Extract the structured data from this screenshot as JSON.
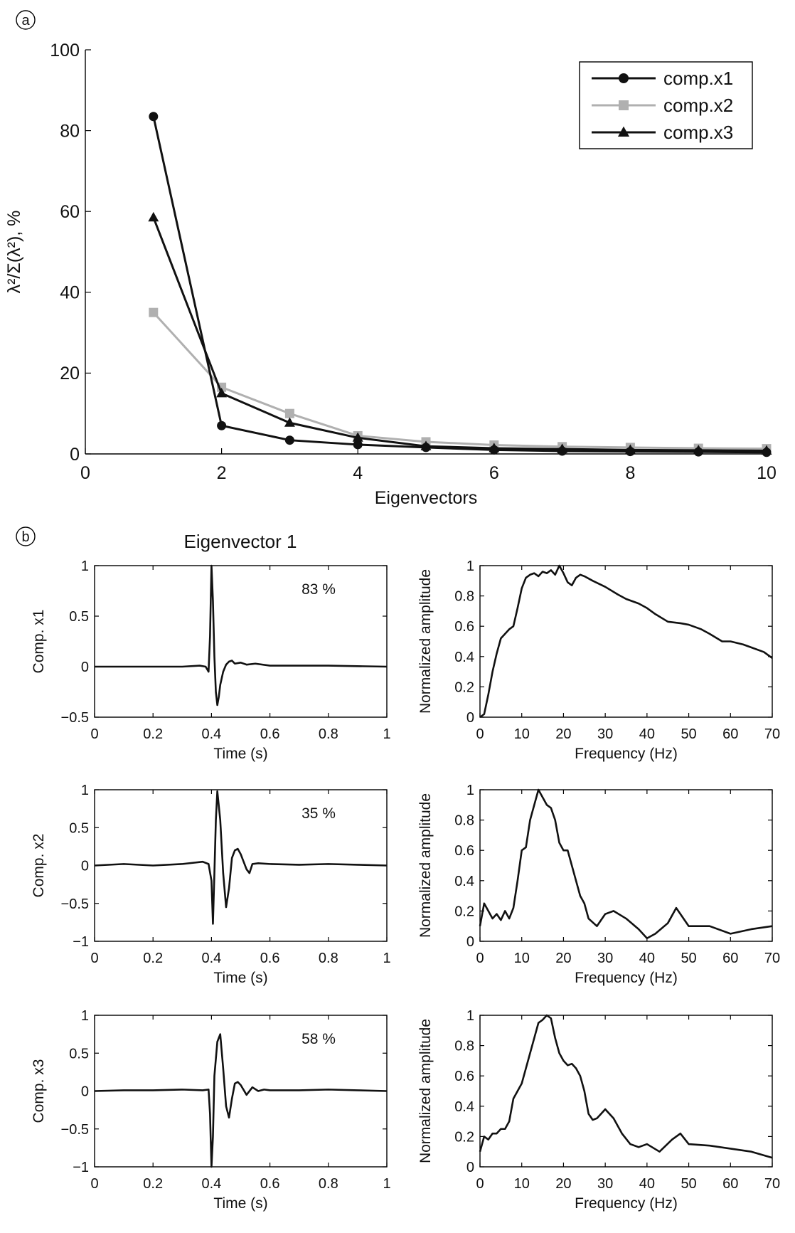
{
  "panel_labels": {
    "a": "a",
    "b": "b"
  },
  "chart_data": [
    {
      "type": "line",
      "panel": "a",
      "xlabel": "Eigenvectors",
      "ylabel": "λ²/Σ(λ²), %",
      "xlim": [
        0,
        10
      ],
      "ylim": [
        0,
        100
      ],
      "xticks": [
        0,
        2,
        4,
        6,
        8,
        10
      ],
      "yticks": [
        0,
        20,
        40,
        60,
        80,
        100
      ],
      "legend_position": "top-right",
      "x": [
        1,
        2,
        3,
        4,
        5,
        6,
        7,
        8,
        9,
        10
      ],
      "series": [
        {
          "name": "comp.x1",
          "color": "#111111",
          "marker": "circle",
          "values": [
            83.5,
            7,
            3.4,
            2.3,
            1.6,
            1.0,
            0.7,
            0.6,
            0.5,
            0.4
          ]
        },
        {
          "name": "comp.x2",
          "color": "#b0b0b0",
          "marker": "square",
          "values": [
            35,
            16.5,
            10,
            4.5,
            3,
            2.2,
            1.8,
            1.6,
            1.4,
            1.3
          ]
        },
        {
          "name": "comp.x3",
          "color": "#111111",
          "marker": "triangle",
          "values": [
            58.5,
            15,
            7.7,
            4.0,
            1.9,
            1.4,
            1.2,
            1.0,
            0.9,
            0.8
          ]
        }
      ]
    },
    {
      "type": "line",
      "panel": "b",
      "title": "Eigenvector 1",
      "ylabel": "Comp. x1",
      "xlabel": "Time (s)",
      "xlim": [
        0,
        1
      ],
      "ylim": [
        -0.5,
        1
      ],
      "xticks": [
        "0",
        "0.2",
        "0.4",
        "0.6",
        "0.8",
        "1"
      ],
      "yticks": [
        "1",
        "0.5",
        "0",
        "−0.5"
      ],
      "annotation": "83 %",
      "x": [
        0,
        0.1,
        0.2,
        0.3,
        0.36,
        0.38,
        0.39,
        0.395,
        0.4,
        0.405,
        0.41,
        0.415,
        0.42,
        0.425,
        0.43,
        0.44,
        0.45,
        0.46,
        0.47,
        0.48,
        0.5,
        0.52,
        0.55,
        0.6,
        0.7,
        0.8,
        1.0
      ],
      "values": [
        0,
        0,
        0,
        0,
        0.01,
        0,
        -0.05,
        0.3,
        1.0,
        0.65,
        0.1,
        -0.25,
        -0.38,
        -0.3,
        -0.18,
        -0.05,
        0.02,
        0.05,
        0.06,
        0.03,
        0.04,
        0.02,
        0.03,
        0.01,
        0.01,
        0.01,
        0
      ]
    },
    {
      "type": "line",
      "panel": "b",
      "xlabel": "Frequency (Hz)",
      "ylabel": "Normalized amplitude",
      "xlim": [
        0,
        70
      ],
      "ylim": [
        0,
        1
      ],
      "xticks": [
        "0",
        "10",
        "20",
        "30",
        "40",
        "50",
        "60",
        "70"
      ],
      "yticks": [
        "1",
        "0.8",
        "0.6",
        "0.4",
        "0.2",
        "0"
      ],
      "x": [
        0,
        1,
        2,
        3,
        4,
        5,
        6,
        7,
        8,
        9,
        10,
        11,
        12,
        13,
        14,
        15,
        16,
        17,
        18,
        19,
        20,
        21,
        22,
        23,
        24,
        25,
        27,
        30,
        33,
        35,
        38,
        40,
        42,
        45,
        48,
        50,
        53,
        55,
        58,
        60,
        63,
        65,
        68,
        70
      ],
      "values": [
        0,
        0.02,
        0.15,
        0.3,
        0.42,
        0.52,
        0.55,
        0.58,
        0.6,
        0.72,
        0.85,
        0.92,
        0.94,
        0.95,
        0.93,
        0.96,
        0.95,
        0.97,
        0.94,
        1.0,
        0.95,
        0.89,
        0.87,
        0.92,
        0.94,
        0.93,
        0.9,
        0.86,
        0.81,
        0.78,
        0.75,
        0.72,
        0.68,
        0.63,
        0.62,
        0.61,
        0.58,
        0.55,
        0.5,
        0.5,
        0.48,
        0.46,
        0.43,
        0.39
      ]
    },
    {
      "type": "line",
      "panel": "b",
      "ylabel": "Comp. x2",
      "xlabel": "Time (s)",
      "xlim": [
        0,
        1
      ],
      "ylim": [
        -1,
        1
      ],
      "xticks": [
        "0",
        "0.2",
        "0.4",
        "0.6",
        "0.8",
        "1"
      ],
      "yticks": [
        "1",
        "0.5",
        "0",
        "−0.5",
        "−1"
      ],
      "annotation": "35 %",
      "x": [
        0,
        0.1,
        0.2,
        0.3,
        0.37,
        0.39,
        0.4,
        0.405,
        0.41,
        0.415,
        0.42,
        0.43,
        0.44,
        0.45,
        0.46,
        0.47,
        0.48,
        0.49,
        0.5,
        0.51,
        0.52,
        0.53,
        0.54,
        0.56,
        0.6,
        0.7,
        0.8,
        0.9,
        1.0
      ],
      "values": [
        0,
        0.02,
        0,
        0.02,
        0.05,
        0.02,
        -0.2,
        -0.77,
        -0.1,
        0.6,
        0.98,
        0.6,
        -0.1,
        -0.55,
        -0.3,
        0.1,
        0.2,
        0.22,
        0.15,
        0.05,
        -0.05,
        -0.1,
        0.02,
        0.03,
        0.02,
        0.01,
        0.02,
        0.01,
        0
      ]
    },
    {
      "type": "line",
      "panel": "b",
      "xlabel": "Frequency (Hz)",
      "ylabel": "Normalized amplitude",
      "xlim": [
        0,
        70
      ],
      "ylim": [
        0,
        1
      ],
      "xticks": [
        "0",
        "10",
        "20",
        "30",
        "40",
        "50",
        "60",
        "70"
      ],
      "yticks": [
        "1",
        "0.8",
        "0.6",
        "0.4",
        "0.2",
        "0"
      ],
      "x": [
        0,
        1,
        2,
        3,
        4,
        5,
        6,
        7,
        8,
        9,
        10,
        11,
        12,
        13,
        14,
        15,
        16,
        17,
        18,
        19,
        20,
        21,
        22,
        23,
        24,
        25,
        26,
        28,
        30,
        32,
        35,
        38,
        40,
        42,
        45,
        47,
        50,
        55,
        60,
        65,
        70
      ],
      "values": [
        0.1,
        0.25,
        0.2,
        0.15,
        0.18,
        0.14,
        0.2,
        0.15,
        0.22,
        0.4,
        0.6,
        0.62,
        0.8,
        0.9,
        1.0,
        0.95,
        0.9,
        0.88,
        0.8,
        0.65,
        0.6,
        0.6,
        0.5,
        0.4,
        0.3,
        0.25,
        0.15,
        0.1,
        0.18,
        0.2,
        0.15,
        0.08,
        0.02,
        0.05,
        0.12,
        0.22,
        0.1,
        0.1,
        0.05,
        0.08,
        0.1
      ]
    },
    {
      "type": "line",
      "panel": "b",
      "ylabel": "Comp. x3",
      "xlabel": "Time (s)",
      "xlim": [
        0,
        1
      ],
      "ylim": [
        -1,
        1
      ],
      "xticks": [
        "0",
        "0.2",
        "0.4",
        "0.6",
        "0.8",
        "1"
      ],
      "yticks": [
        "1",
        "0.5",
        "0",
        "−0.5",
        "−1"
      ],
      "annotation": "58 %",
      "x": [
        0,
        0.1,
        0.2,
        0.3,
        0.37,
        0.39,
        0.395,
        0.4,
        0.405,
        0.41,
        0.42,
        0.43,
        0.44,
        0.45,
        0.46,
        0.47,
        0.48,
        0.49,
        0.5,
        0.52,
        0.54,
        0.56,
        0.58,
        0.6,
        0.7,
        0.8,
        0.9,
        1.0
      ],
      "values": [
        0,
        0.01,
        0.01,
        0.02,
        0.01,
        0.02,
        -0.3,
        -1.0,
        -0.6,
        0.2,
        0.65,
        0.75,
        0.3,
        -0.2,
        -0.35,
        -0.1,
        0.1,
        0.12,
        0.08,
        -0.05,
        0.05,
        0.0,
        0.02,
        0.01,
        0.01,
        0.02,
        0.01,
        0
      ]
    },
    {
      "type": "line",
      "panel": "b",
      "xlabel": "Frequency (Hz)",
      "ylabel": "Normalized amplitude",
      "xlim": [
        0,
        70
      ],
      "ylim": [
        0,
        1
      ],
      "xticks": [
        "0",
        "10",
        "20",
        "30",
        "40",
        "50",
        "60",
        "70"
      ],
      "yticks": [
        "1",
        "0.8",
        "0.6",
        "0.4",
        "0.2",
        "0"
      ],
      "x": [
        0,
        1,
        2,
        3,
        4,
        5,
        6,
        7,
        8,
        9,
        10,
        11,
        12,
        13,
        14,
        15,
        16,
        17,
        18,
        19,
        20,
        21,
        22,
        23,
        24,
        25,
        26,
        27,
        28,
        29,
        30,
        32,
        34,
        36,
        38,
        40,
        43,
        46,
        48,
        50,
        55,
        60,
        65,
        70
      ],
      "values": [
        0.1,
        0.2,
        0.18,
        0.22,
        0.22,
        0.25,
        0.25,
        0.3,
        0.45,
        0.5,
        0.55,
        0.65,
        0.75,
        0.85,
        0.95,
        0.97,
        1.0,
        0.98,
        0.85,
        0.75,
        0.7,
        0.67,
        0.68,
        0.65,
        0.6,
        0.5,
        0.35,
        0.31,
        0.32,
        0.35,
        0.38,
        0.32,
        0.22,
        0.15,
        0.13,
        0.15,
        0.1,
        0.18,
        0.22,
        0.15,
        0.14,
        0.12,
        0.1,
        0.06
      ]
    }
  ]
}
